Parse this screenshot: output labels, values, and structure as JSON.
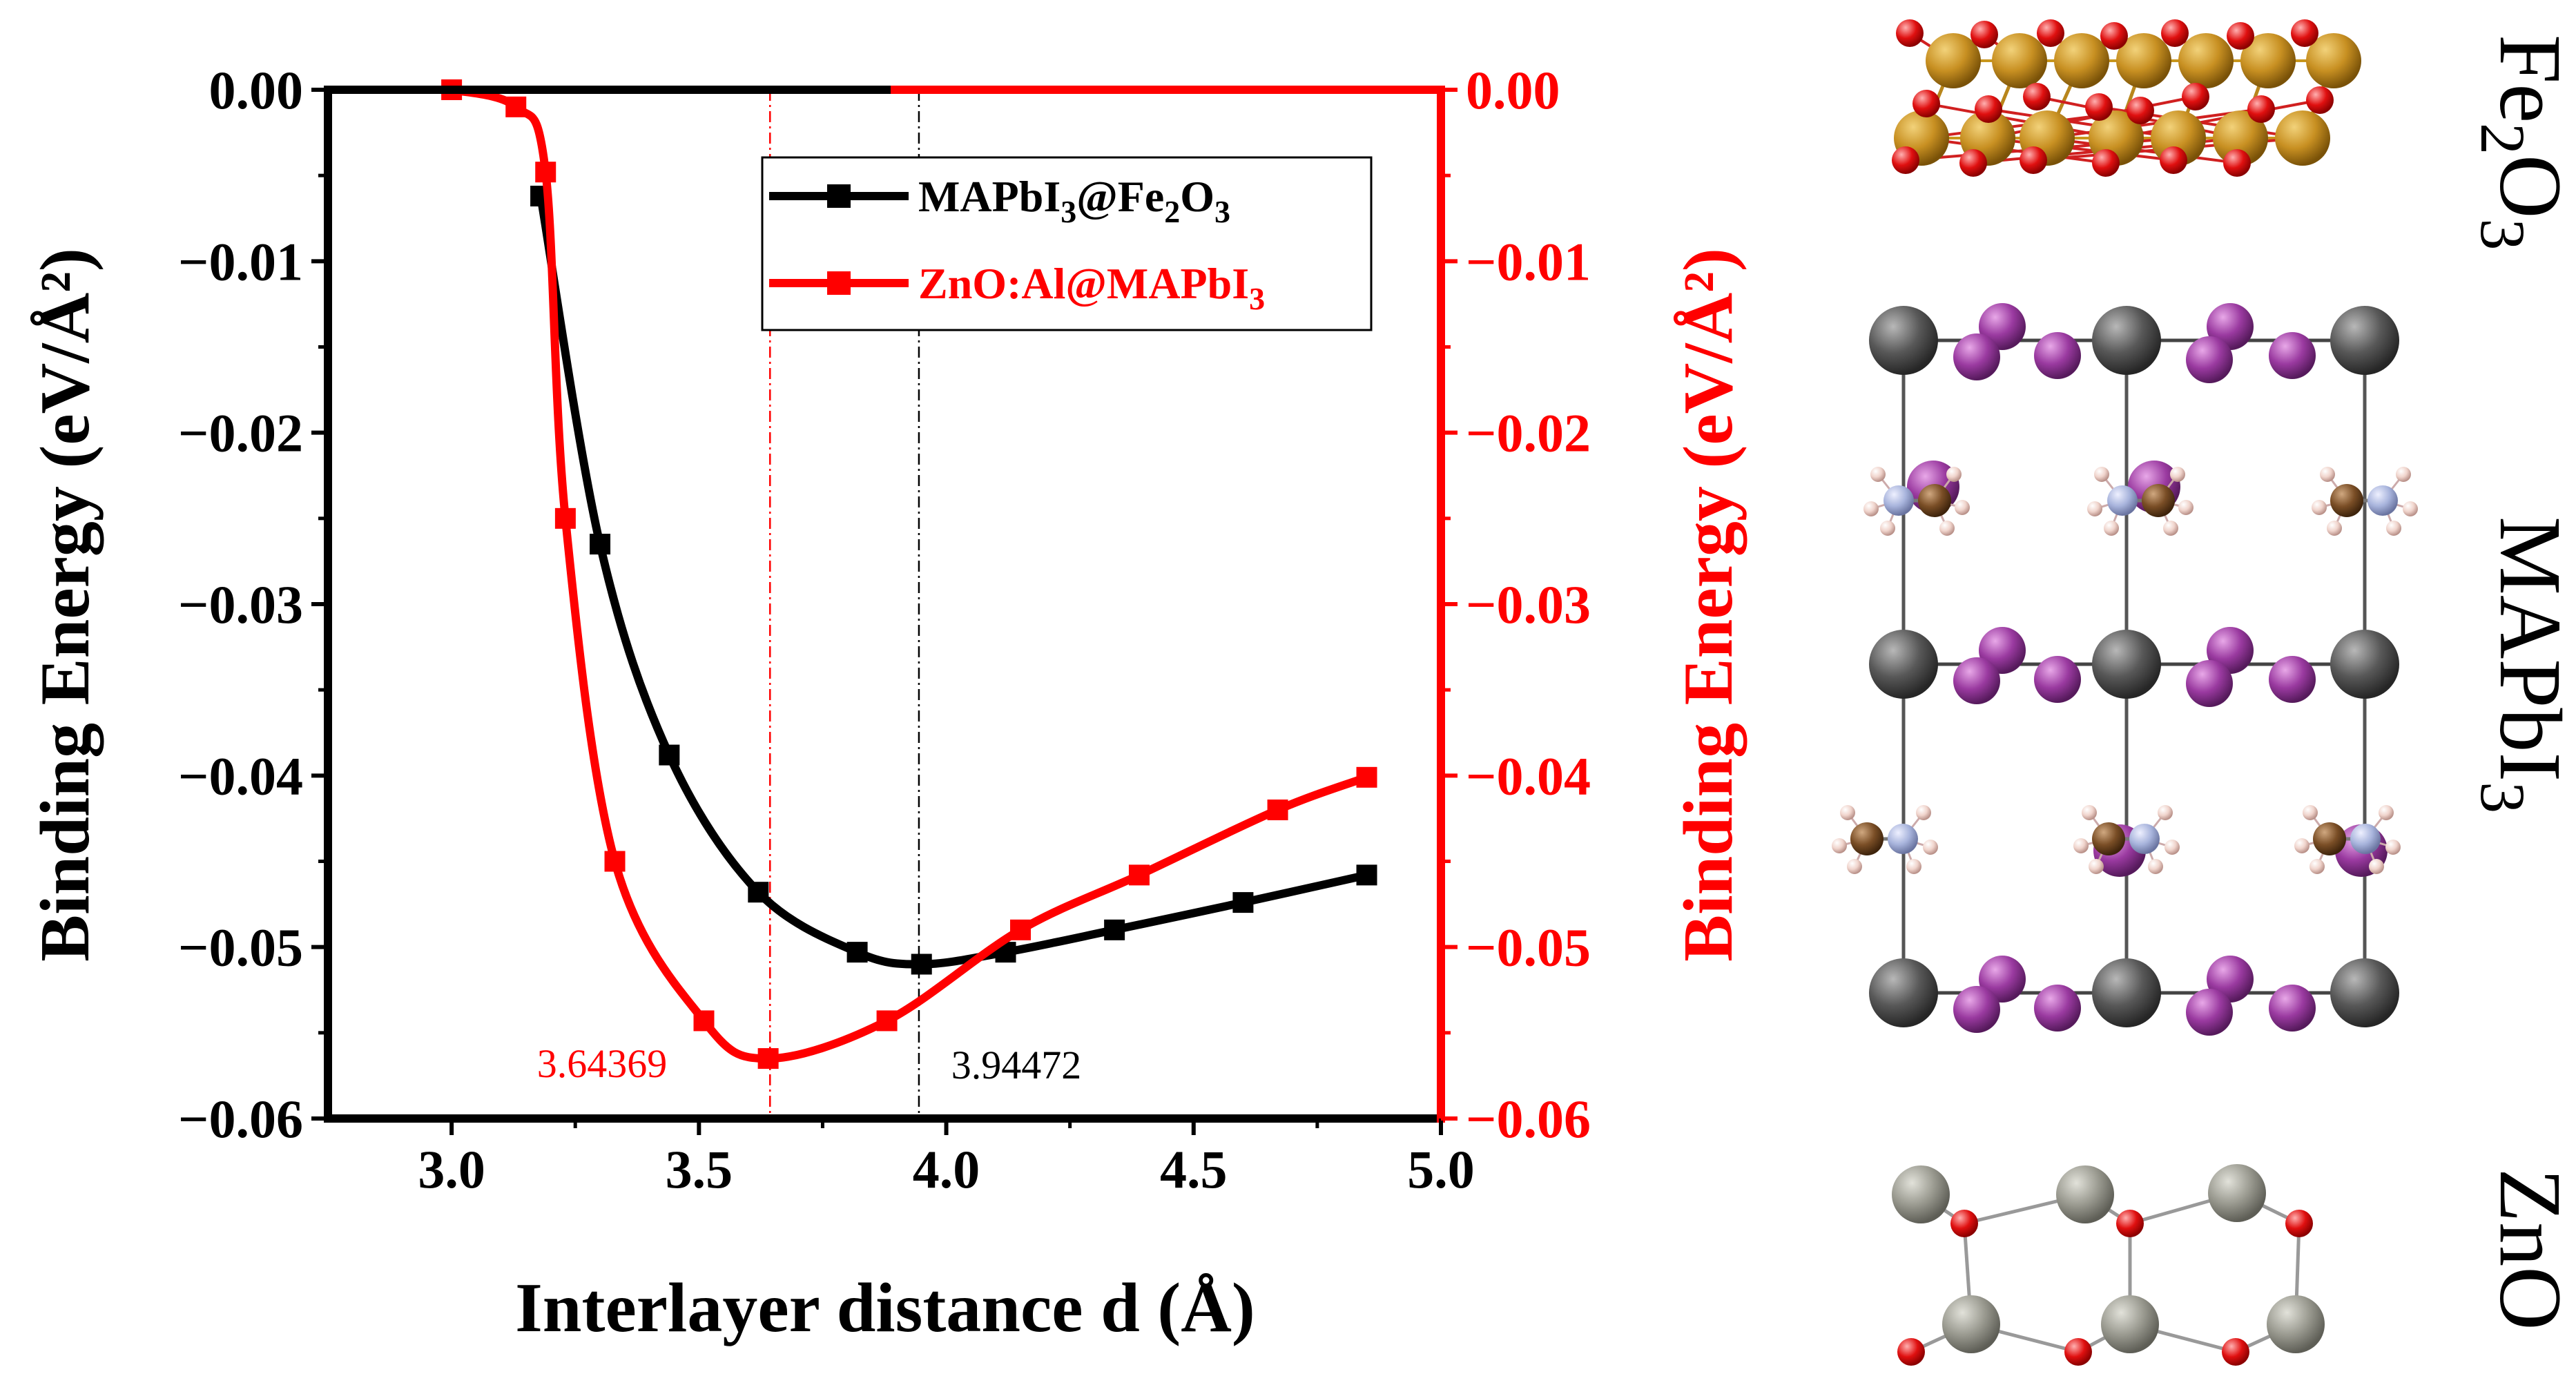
{
  "chart_data": {
    "type": "line",
    "xlabel": "Interlayer distance d (Å)",
    "ylabel_left": "Binding Energy (eV/Å²)",
    "ylabel_right": "Binding Energy (eV/Å²)",
    "xlim": [
      2.75,
      5.0
    ],
    "ylim": [
      -0.06,
      0.0
    ],
    "x_ticks": [
      3.0,
      3.5,
      4.0,
      4.5,
      5.0
    ],
    "x_tick_labels": [
      "3.0",
      "3.5",
      "4.0",
      "4.5",
      "5.0"
    ],
    "y_ticks": [
      0.0,
      -0.01,
      -0.02,
      -0.03,
      -0.04,
      -0.05,
      -0.06
    ],
    "y_tick_labels": [
      "0.00",
      "−0.01",
      "−0.02",
      "−0.03",
      "−0.04",
      "−0.05",
      "−0.06"
    ],
    "colors": {
      "black": "#000000",
      "red": "#ff0000"
    },
    "series": [
      {
        "name": "MAPbI₃@Fe₂O₃",
        "legend_main": "MAPbI",
        "legend_sub1": "3",
        "legend_mid": "@Fe",
        "legend_sub2": "2",
        "legend_mid2": "O",
        "legend_sub3": "3",
        "color": "#000000",
        "axis": "left",
        "x": [
          3.18,
          3.3,
          3.44,
          3.62,
          3.82,
          3.95,
          4.12,
          4.34,
          4.6,
          4.85
        ],
        "y": [
          -0.0062,
          -0.0265,
          -0.0388,
          -0.0468,
          -0.0503,
          -0.051,
          -0.0503,
          -0.049,
          -0.0474,
          -0.0458
        ],
        "min_x": 3.94472,
        "min_label": "3.94472"
      },
      {
        "name": "ZnO:Al@MAPbI₃",
        "legend_main": "ZnO:Al@MAPbI",
        "legend_sub1": "3",
        "color": "#ff0000",
        "axis": "right",
        "x": [
          3.0,
          3.13,
          3.19,
          3.23,
          3.33,
          3.51,
          3.64,
          3.88,
          4.15,
          4.39,
          4.67,
          4.85
        ],
        "y": [
          0.0,
          -0.001,
          -0.0048,
          -0.025,
          -0.045,
          -0.0543,
          -0.0565,
          -0.0543,
          -0.049,
          -0.0458,
          -0.042,
          -0.0401
        ],
        "min_x": 3.64369,
        "min_label": "3.64369"
      }
    ]
  },
  "structures": {
    "top_label": "Fe",
    "top_sub1": "2",
    "top_mid": "O",
    "top_sub2": "3",
    "middle_label": "MAPbI",
    "middle_sub": "3",
    "bottom_label": "ZnO"
  }
}
